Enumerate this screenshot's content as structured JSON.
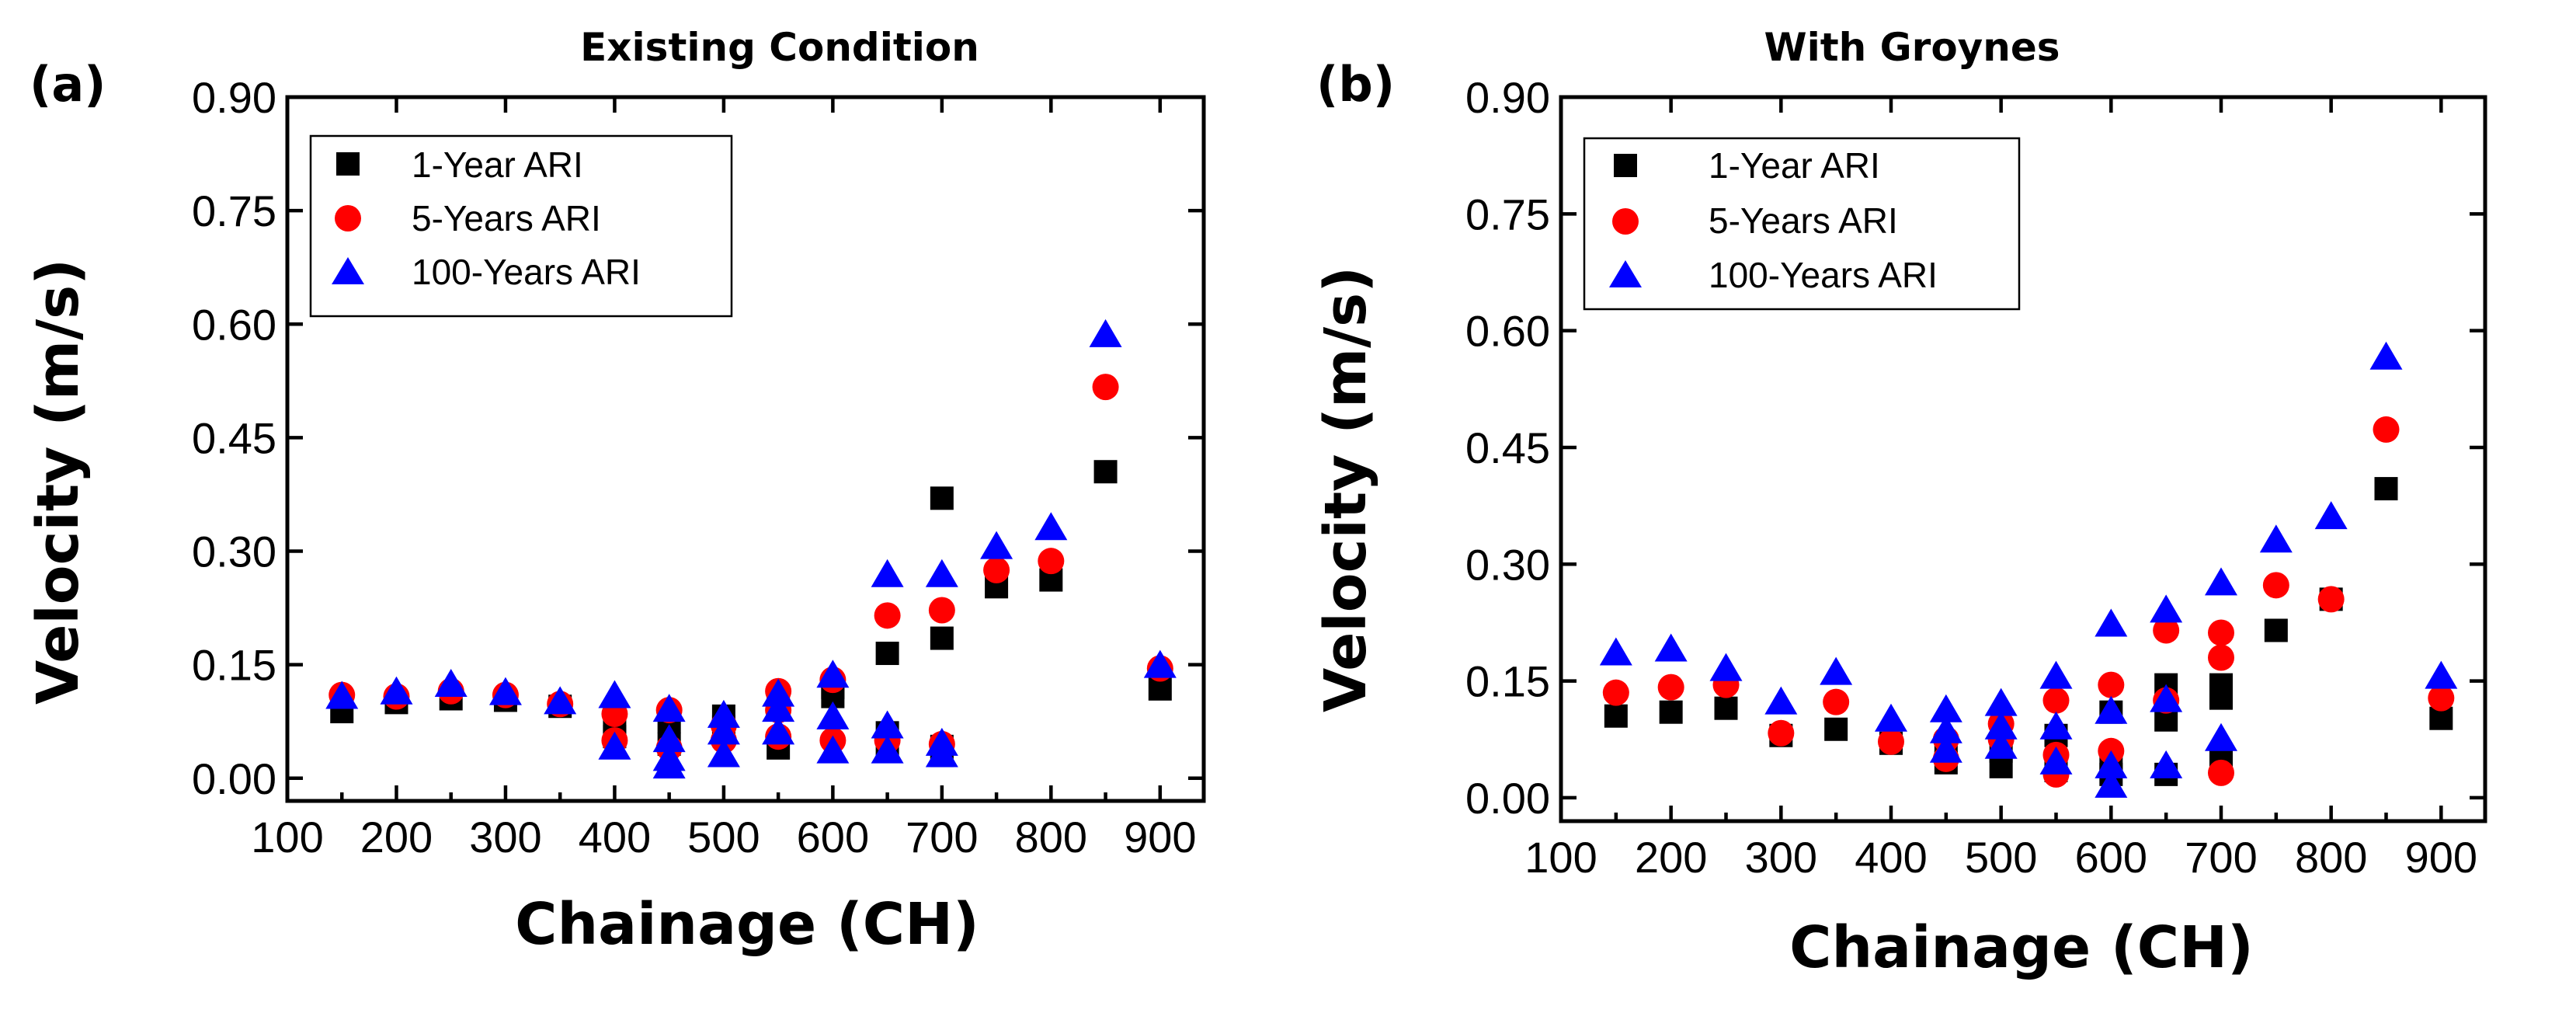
{
  "chart_data": [
    {
      "type": "scatter",
      "panel_label": "(a)",
      "title": "Existing Condition",
      "xlabel": "Chainage (CH)",
      "ylabel": "Velocity (m/s)",
      "xlim": [
        100,
        940
      ],
      "ylim": [
        -0.03,
        0.9
      ],
      "xticks": [
        "100",
        "200",
        "300",
        "400",
        "500",
        "600",
        "700",
        "800",
        "900"
      ],
      "yticks": [
        "0.00",
        "0.15",
        "0.30",
        "0.45",
        "0.60",
        "0.75",
        "0.90"
      ],
      "legend_position": "top-left",
      "series": [
        {
          "name": "1-Year ARI",
          "marker": "square",
          "color": "#000000",
          "points": [
            [
              150,
              0.088
            ],
            [
              200,
              0.1
            ],
            [
              250,
              0.105
            ],
            [
              300,
              0.103
            ],
            [
              350,
              0.095
            ],
            [
              400,
              0.075
            ],
            [
              400,
              0.055
            ],
            [
              450,
              0.075
            ],
            [
              450,
              0.045
            ],
            [
              500,
              0.082
            ],
            [
              500,
              0.068
            ],
            [
              550,
              0.1
            ],
            [
              550,
              0.04
            ],
            [
              600,
              0.108
            ],
            [
              600,
              0.12
            ],
            [
              650,
              0.165
            ],
            [
              650,
              0.06
            ],
            [
              650,
              0.045
            ],
            [
              700,
              0.37
            ],
            [
              700,
              0.185
            ],
            [
              700,
              0.042
            ],
            [
              700,
              0.03
            ],
            [
              750,
              0.253
            ],
            [
              800,
              0.262
            ],
            [
              850,
              0.405
            ],
            [
              900,
              0.118
            ]
          ]
        },
        {
          "name": "5-Years ARI",
          "marker": "circle",
          "color": "#ff0000",
          "points": [
            [
              150,
              0.11
            ],
            [
              200,
              0.108
            ],
            [
              250,
              0.115
            ],
            [
              300,
              0.11
            ],
            [
              350,
              0.098
            ],
            [
              400,
              0.085
            ],
            [
              400,
              0.05
            ],
            [
              450,
              0.09
            ],
            [
              450,
              0.04
            ],
            [
              500,
              0.07
            ],
            [
              500,
              0.05
            ],
            [
              550,
              0.115
            ],
            [
              550,
              0.09
            ],
            [
              550,
              0.055
            ],
            [
              600,
              0.13
            ],
            [
              600,
              0.05
            ],
            [
              650,
              0.215
            ],
            [
              650,
              0.05
            ],
            [
              700,
              0.222
            ],
            [
              700,
              0.045
            ],
            [
              750,
              0.275
            ],
            [
              800,
              0.287
            ],
            [
              850,
              0.517
            ],
            [
              900,
              0.145
            ]
          ]
        },
        {
          "name": "100-Years ARI",
          "marker": "triangle",
          "color": "#0000ff",
          "points": [
            [
              150,
              0.107
            ],
            [
              200,
              0.113
            ],
            [
              250,
              0.123
            ],
            [
              300,
              0.112
            ],
            [
              350,
              0.1
            ],
            [
              400,
              0.108
            ],
            [
              400,
              0.04
            ],
            [
              450,
              0.09
            ],
            [
              450,
              0.05
            ],
            [
              450,
              0.025
            ],
            [
              450,
              0.015
            ],
            [
              500,
              0.082
            ],
            [
              500,
              0.06
            ],
            [
              500,
              0.03
            ],
            [
              550,
              0.11
            ],
            [
              550,
              0.09
            ],
            [
              550,
              0.06
            ],
            [
              600,
              0.135
            ],
            [
              600,
              0.08
            ],
            [
              600,
              0.035
            ],
            [
              650,
              0.268
            ],
            [
              650,
              0.068
            ],
            [
              650,
              0.035
            ],
            [
              700,
              0.268
            ],
            [
              700,
              0.045
            ],
            [
              700,
              0.03
            ],
            [
              750,
              0.305
            ],
            [
              800,
              0.33
            ],
            [
              850,
              0.585
            ],
            [
              900,
              0.148
            ]
          ]
        }
      ]
    },
    {
      "type": "scatter",
      "panel_label": "(b)",
      "title": "With Groynes",
      "xlabel": "Chainage (CH)",
      "ylabel": "Velocity (m/s)",
      "xlim": [
        100,
        940
      ],
      "ylim": [
        -0.03,
        0.9
      ],
      "xticks": [
        "100",
        "200",
        "300",
        "400",
        "500",
        "600",
        "700",
        "800",
        "900"
      ],
      "yticks": [
        "0.00",
        "0.15",
        "0.30",
        "0.45",
        "0.60",
        "0.75",
        "0.90"
      ],
      "legend_position": "top-left",
      "series": [
        {
          "name": "1-Year ARI",
          "marker": "square",
          "color": "#000000",
          "points": [
            [
              150,
              0.105
            ],
            [
              200,
              0.11
            ],
            [
              250,
              0.115
            ],
            [
              300,
              0.08
            ],
            [
              350,
              0.088
            ],
            [
              400,
              0.07
            ],
            [
              450,
              0.06
            ],
            [
              450,
              0.045
            ],
            [
              500,
              0.06
            ],
            [
              500,
              0.04
            ],
            [
              550,
              0.08
            ],
            [
              550,
              0.035
            ],
            [
              600,
              0.11
            ],
            [
              600,
              0.05
            ],
            [
              600,
              0.03
            ],
            [
              650,
              0.145
            ],
            [
              650,
              0.1
            ],
            [
              650,
              0.03
            ],
            [
              700,
              0.145
            ],
            [
              700,
              0.128
            ],
            [
              700,
              0.05
            ],
            [
              750,
              0.215
            ],
            [
              800,
              0.255
            ],
            [
              850,
              0.397
            ],
            [
              900,
              0.102
            ]
          ]
        },
        {
          "name": "5-Years ARI",
          "marker": "circle",
          "color": "#ff0000",
          "points": [
            [
              150,
              0.135
            ],
            [
              200,
              0.142
            ],
            [
              250,
              0.145
            ],
            [
              300,
              0.083
            ],
            [
              350,
              0.123
            ],
            [
              400,
              0.072
            ],
            [
              450,
              0.075
            ],
            [
              450,
              0.05
            ],
            [
              500,
              0.095
            ],
            [
              500,
              0.075
            ],
            [
              550,
              0.125
            ],
            [
              550,
              0.055
            ],
            [
              550,
              0.03
            ],
            [
              600,
              0.145
            ],
            [
              600,
              0.06
            ],
            [
              650,
              0.215
            ],
            [
              650,
              0.125
            ],
            [
              700,
              0.212
            ],
            [
              700,
              0.18
            ],
            [
              700,
              0.032
            ],
            [
              750,
              0.273
            ],
            [
              800,
              0.255
            ],
            [
              850,
              0.473
            ],
            [
              900,
              0.128
            ]
          ]
        },
        {
          "name": "100-Years ARI",
          "marker": "triangle",
          "color": "#0000ff",
          "points": [
            [
              150,
              0.185
            ],
            [
              200,
              0.19
            ],
            [
              250,
              0.165
            ],
            [
              300,
              0.122
            ],
            [
              350,
              0.16
            ],
            [
              400,
              0.1
            ],
            [
              450,
              0.112
            ],
            [
              450,
              0.085
            ],
            [
              450,
              0.06
            ],
            [
              500,
              0.12
            ],
            [
              500,
              0.09
            ],
            [
              500,
              0.065
            ],
            [
              550,
              0.155
            ],
            [
              550,
              0.09
            ],
            [
              550,
              0.045
            ],
            [
              600,
              0.222
            ],
            [
              600,
              0.11
            ],
            [
              600,
              0.04
            ],
            [
              600,
              0.015
            ],
            [
              650,
              0.24
            ],
            [
              650,
              0.125
            ],
            [
              650,
              0.04
            ],
            [
              700,
              0.275
            ],
            [
              700,
              0.075
            ],
            [
              750,
              0.33
            ],
            [
              800,
              0.36
            ],
            [
              850,
              0.565
            ],
            [
              900,
              0.155
            ]
          ]
        }
      ]
    }
  ]
}
